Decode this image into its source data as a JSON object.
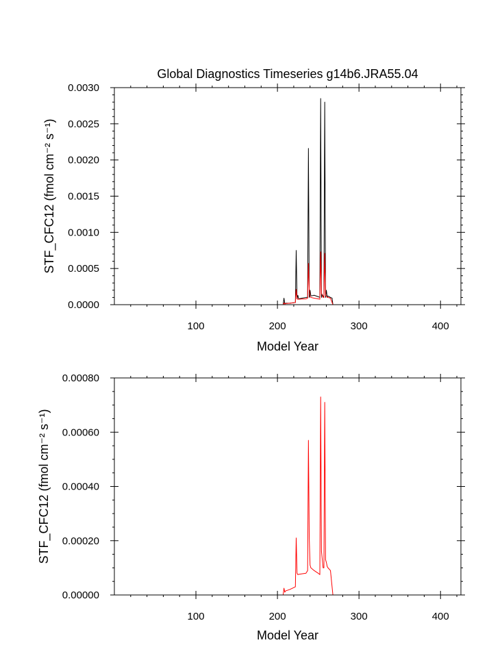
{
  "chart_data": [
    {
      "type": "line",
      "title": "Global Diagnostics Timeseries g14b6.JRA55.04",
      "xlabel": "Model Year",
      "ylabel": "STF_CFC12 (fmol cm⁻² s⁻¹)",
      "xlim": [
        0,
        425
      ],
      "ylim": [
        0,
        0.003
      ],
      "xticks": [
        100,
        200,
        300,
        400
      ],
      "xtick_labels": [
        "100",
        "200",
        "300",
        "400"
      ],
      "yticks": [
        0,
        0.0005,
        0.001,
        0.0015,
        0.002,
        0.0025,
        0.003
      ],
      "ytick_labels": [
        "0.0000",
        "0.0005",
        "0.0010",
        "0.0015",
        "0.0020",
        "0.0025",
        "0.0030"
      ],
      "series": [
        {
          "color": "#000000",
          "x": [
            0,
            200,
            207,
            208,
            209,
            210,
            215,
            222,
            223,
            224,
            225,
            226,
            230,
            235,
            237,
            238,
            239,
            240,
            241,
            245,
            250,
            252,
            253,
            254,
            255,
            256,
            257,
            258,
            259,
            260,
            261,
            262,
            265,
            267,
            268,
            425
          ],
          "y": [
            0,
            0,
            0,
            9e-05,
            1e-05,
            2e-05,
            2e-05,
            3e-05,
            0.00075,
            8e-05,
            0.00013,
            8e-05,
            9e-05,
            0.0001,
            0.0001,
            0.00216,
            0.0001,
            0.0002,
            0.00012,
            0.00013,
            0.00011,
            0.0001,
            0.00285,
            0.0001,
            0.00014,
            0.00012,
            0.0001,
            0.0028,
            0.0001,
            0.0002,
            0.0001,
            0.00012,
            0.0001,
            9e-05,
            0,
            0
          ]
        },
        {
          "color": "#ff0000",
          "x": [
            0,
            200,
            207,
            208,
            209,
            210,
            215,
            222,
            223,
            224,
            225,
            226,
            230,
            235,
            237,
            238,
            239,
            240,
            241,
            245,
            250,
            252,
            253,
            254,
            255,
            256,
            257,
            258,
            259,
            260,
            261,
            262,
            265,
            267,
            268,
            425
          ],
          "y": [
            0,
            0,
            0,
            2.5e-05,
            1e-05,
            1.5e-05,
            2e-05,
            3e-05,
            0.00021,
            8e-05,
            7.5e-05,
            7.6e-05,
            7.8e-05,
            8e-05,
            9e-05,
            0.00057,
            0.00021,
            0.00011,
            0.0001,
            9e-05,
            8e-05,
            7.5e-05,
            0.00073,
            0.00016,
            0.00013,
            0.0001,
            0.0001,
            0.00071,
            0.00013,
            0.00012,
            0.000105,
            0.0001,
            9e-05,
            3e-05,
            0,
            0
          ]
        }
      ]
    },
    {
      "type": "line",
      "xlabel": "Model Year",
      "ylabel": "STF_CFC12 (fmol cm⁻² s⁻¹)",
      "xlim": [
        0,
        425
      ],
      "ylim": [
        0,
        0.0008
      ],
      "xticks": [
        100,
        200,
        300,
        400
      ],
      "xtick_labels": [
        "100",
        "200",
        "300",
        "400"
      ],
      "yticks": [
        0,
        0.0002,
        0.0004,
        0.0006,
        0.0008
      ],
      "ytick_labels": [
        "0.00000",
        "0.00020",
        "0.00040",
        "0.00060",
        "0.00080"
      ],
      "series": [
        {
          "color": "#ff0000",
          "x": [
            0,
            200,
            207,
            208,
            209,
            210,
            215,
            222,
            223,
            224,
            225,
            226,
            230,
            235,
            237,
            238,
            239,
            240,
            241,
            245,
            250,
            252,
            253,
            254,
            255,
            256,
            257,
            258,
            259,
            260,
            261,
            262,
            265,
            267,
            268,
            425
          ],
          "y": [
            0,
            0,
            0,
            2.5e-05,
            1e-05,
            1.5e-05,
            2e-05,
            3e-05,
            0.00021,
            8e-05,
            7.5e-05,
            7.6e-05,
            7.8e-05,
            8e-05,
            9e-05,
            0.00057,
            0.00021,
            0.00011,
            0.0001,
            9e-05,
            8e-05,
            7.5e-05,
            0.00073,
            0.00016,
            0.00013,
            0.0001,
            0.0001,
            0.00071,
            0.00013,
            0.00012,
            0.000105,
            0.0001,
            9e-05,
            3e-05,
            0,
            0
          ]
        }
      ]
    }
  ]
}
